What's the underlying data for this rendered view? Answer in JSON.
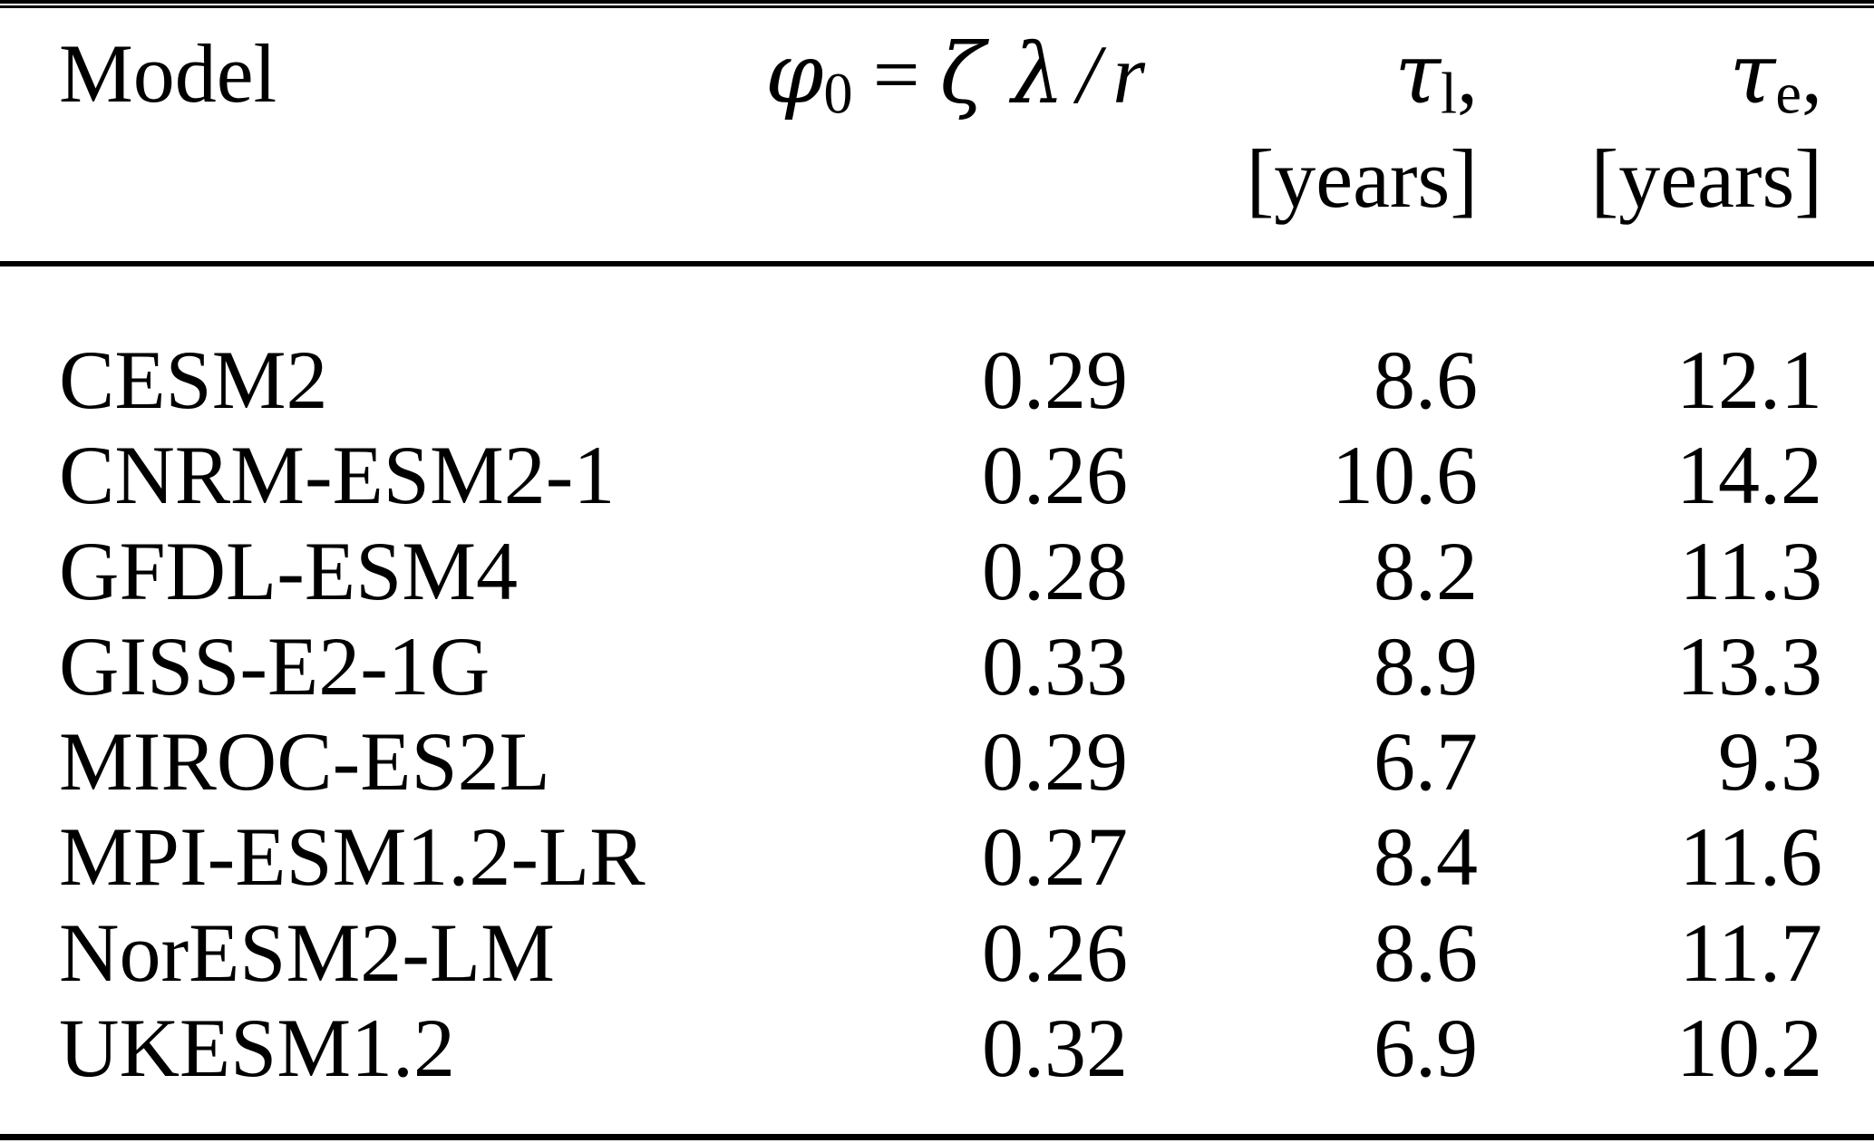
{
  "colors": {
    "background": "#ffffff",
    "text": "#000000",
    "rule": "#000000"
  },
  "table": {
    "header": {
      "model_label": "Model",
      "phi": {
        "symbol": "φ",
        "subscript": "0",
        "relation": "=",
        "zeta_lambda": "ζ λ",
        "slash": "/",
        "r": "r"
      },
      "tau_l": {
        "symbol": "τ",
        "subscript": "l",
        "comma": ",",
        "unit": "[years]"
      },
      "tau_e": {
        "symbol": "τ",
        "subscript": "e",
        "comma": ",",
        "unit": "[years]"
      }
    },
    "rows": [
      {
        "model": "CESM2",
        "phi0": "0.29",
        "tau_l": "8.6",
        "tau_e": "12.1"
      },
      {
        "model": "CNRM-ESM2-1",
        "phi0": "0.26",
        "tau_l": "10.6",
        "tau_e": "14.2"
      },
      {
        "model": "GFDL-ESM4",
        "phi0": "0.28",
        "tau_l": "8.2",
        "tau_e": "11.3"
      },
      {
        "model": "GISS-E2-1G",
        "phi0": "0.33",
        "tau_l": "8.9",
        "tau_e": "13.3"
      },
      {
        "model": "MIROC-ES2L",
        "phi0": "0.29",
        "tau_l": "6.7",
        "tau_e": "9.3"
      },
      {
        "model": "MPI-ESM1.2-LR",
        "phi0": "0.27",
        "tau_l": "8.4",
        "tau_e": "11.6"
      },
      {
        "model": "NorESM2-LM",
        "phi0": "0.26",
        "tau_l": "8.6",
        "tau_e": "11.7"
      },
      {
        "model": "UKESM1.2",
        "phi0": "0.32",
        "tau_l": "6.9",
        "tau_e": "10.2"
      }
    ]
  }
}
